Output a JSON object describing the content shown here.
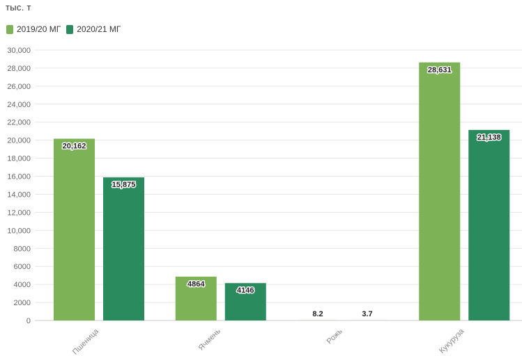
{
  "unit_label": "тыс. т",
  "chart_data": {
    "type": "bar",
    "categories": [
      "Пшеница",
      "Ячмень",
      "Рожь",
      "Кукуруза"
    ],
    "series": [
      {
        "name": "2019/20 МГ",
        "color": "#7db356",
        "values": [
          20162,
          4864,
          8.2,
          28631
        ],
        "value_labels": [
          "20,162",
          "4864",
          "8.2",
          "28,631"
        ]
      },
      {
        "name": "2020/21 МГ",
        "color": "#2a8c5e",
        "values": [
          15875,
          4146,
          3.7,
          21138
        ],
        "value_labels": [
          "15,875",
          "4146",
          "3.7",
          "21,138"
        ]
      }
    ],
    "ylim": [
      0,
      30000
    ],
    "yticks": [
      0,
      2000,
      4000,
      6000,
      8000,
      10000,
      12000,
      14000,
      16000,
      18000,
      20000,
      22000,
      24000,
      26000,
      28000,
      30000
    ],
    "ytick_labels": [
      "0",
      "2000",
      "4000",
      "6000",
      "8000",
      "10,000",
      "12,000",
      "14,000",
      "16,000",
      "18,000",
      "20,000",
      "22,000",
      "24,000",
      "26,000",
      "28,000",
      "30,000"
    ],
    "grid": true,
    "legend_position": "top-left"
  }
}
